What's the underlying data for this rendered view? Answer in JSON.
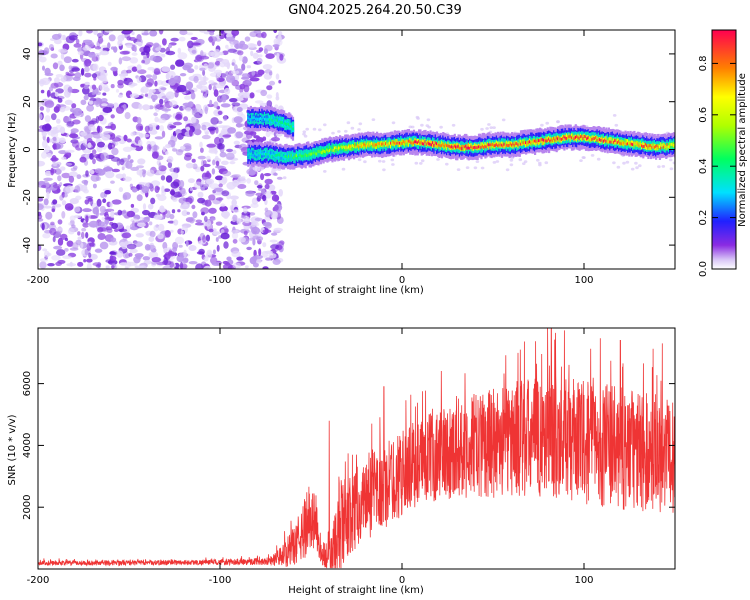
{
  "title": "GN04.2025.264.20.50.C39",
  "chart_data": [
    {
      "type": "heatmap",
      "name": "spectrogram",
      "xlabel": "Height of straight line (km)",
      "ylabel": "Frequency (Hz)",
      "xlim": [
        -200,
        150
      ],
      "ylim": [
        -50,
        50
      ],
      "xticks": [
        -200,
        -100,
        0,
        100
      ],
      "yticks": [
        -40,
        -20,
        0,
        20,
        40
      ],
      "colorbar": {
        "label": "Normalized spectral amplitude",
        "range": [
          0,
          0.93
        ],
        "ticks": [
          0.0,
          0.2,
          0.4,
          0.6,
          0.8
        ]
      },
      "noise_region": [
        -200,
        -72
      ],
      "ridge": {
        "x": [
          -85,
          -75,
          -65,
          -60,
          -50,
          -40,
          -30,
          -20,
          -10,
          0,
          10,
          20,
          30,
          40,
          50,
          60,
          70,
          80,
          90,
          100,
          110,
          120,
          130,
          140,
          150
        ],
        "freq_high": [
          13,
          13,
          11,
          9,
          null,
          null,
          null,
          null,
          null,
          null,
          null,
          null,
          null,
          null,
          null,
          null,
          null,
          null,
          null,
          null,
          null,
          null,
          null,
          null,
          null
        ],
        "freq": [
          -2,
          -2,
          -3,
          -3,
          -2,
          0,
          1,
          2,
          2,
          3,
          3,
          2,
          1,
          1,
          2,
          2,
          3,
          4,
          5,
          5,
          4,
          3,
          2,
          1,
          2
        ],
        "amp": [
          0.3,
          0.35,
          0.4,
          0.45,
          0.5,
          0.55,
          0.65,
          0.7,
          0.75,
          0.8,
          0.85,
          0.85,
          0.9,
          0.85,
          0.85,
          0.8,
          0.8,
          0.85,
          0.85,
          0.8,
          0.8,
          0.8,
          0.8,
          0.75,
          0.7
        ]
      }
    },
    {
      "type": "line",
      "name": "snr",
      "xlabel": "Height of straight line (km)",
      "ylabel": "SNR (10 * v/v)",
      "xlim": [
        -200,
        150
      ],
      "ylim": [
        0,
        7800
      ],
      "xticks": [
        -200,
        -100,
        0,
        100
      ],
      "yticks": [
        2000,
        4000,
        6000
      ],
      "color": "#ef3434",
      "envelope": {
        "x": [
          -200,
          -150,
          -100,
          -75,
          -70,
          -65,
          -60,
          -55,
          -50,
          -47,
          -45,
          -40,
          -37,
          -35,
          -30,
          -25,
          -20,
          -15,
          -10,
          -5,
          0,
          10,
          20,
          30,
          40,
          50,
          60,
          70,
          80,
          90,
          100,
          110,
          120,
          130,
          140,
          150
        ],
        "mean": [
          200,
          200,
          220,
          250,
          300,
          450,
          700,
          1100,
          1800,
          1500,
          500,
          400,
          600,
          1200,
          1600,
          2000,
          2300,
          2400,
          2600,
          2900,
          3100,
          3500,
          3700,
          3900,
          4000,
          4100,
          4200,
          4200,
          4300,
          4200,
          4100,
          4000,
          3900,
          3800,
          3700,
          3600
        ],
        "amp": [
          80,
          80,
          90,
          120,
          200,
          400,
          600,
          900,
          1200,
          900,
          400,
          500,
          1200,
          1800,
          1300,
          1300,
          1300,
          1400,
          1400,
          1400,
          1400,
          1400,
          1500,
          1600,
          1700,
          1800,
          1900,
          2000,
          2000,
          2000,
          2000,
          2000,
          2000,
          2000,
          1900,
          1800
        ]
      },
      "peaks": [
        {
          "x": -40,
          "y": 4800
        },
        {
          "x": -10,
          "y": 5900
        },
        {
          "x": 30,
          "y": 5600
        },
        {
          "x": 65,
          "y": 7100
        },
        {
          "x": 82,
          "y": 7800
        },
        {
          "x": 120,
          "y": 7400
        },
        {
          "x": 143,
          "y": 7300
        }
      ]
    }
  ]
}
